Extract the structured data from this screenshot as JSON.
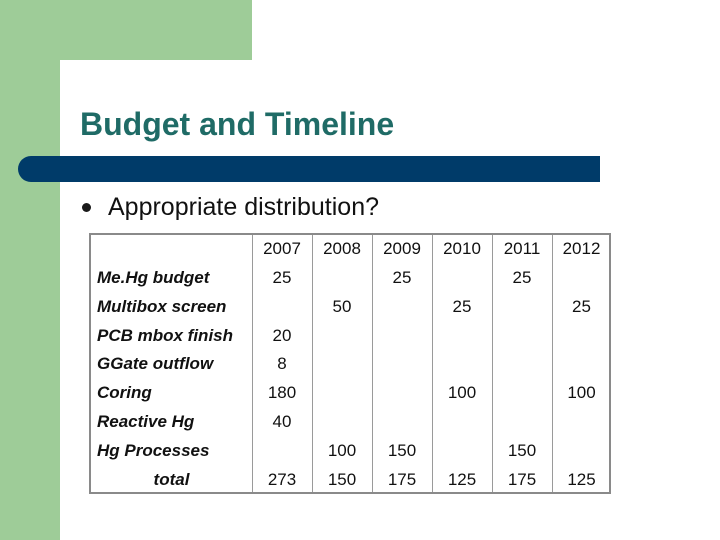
{
  "slide": {
    "title": "Budget and Timeline",
    "bullet": "Appropriate distribution?",
    "colors": {
      "accent_green": "#9ecc98",
      "title_color": "#1f6b66",
      "bar_color": "#003b69"
    }
  },
  "table": {
    "years": [
      "2007",
      "2008",
      "2009",
      "2010",
      "2011",
      "2012"
    ],
    "rows": [
      {
        "label": "Me.Hg budget",
        "cells": [
          {
            "col": 0,
            "span": 1,
            "value": "25"
          },
          {
            "col": 1,
            "span": 3,
            "value": "25"
          },
          {
            "col": 4,
            "span": 1,
            "value": "25"
          }
        ]
      },
      {
        "label": "Multibox screen",
        "cells": [
          {
            "col": 1,
            "span": 1,
            "value": "50"
          },
          {
            "col": 3,
            "span": 1,
            "value": "25"
          },
          {
            "col": 5,
            "span": 1,
            "value": "25"
          }
        ]
      },
      {
        "label": "PCB mbox finish",
        "cells": [
          {
            "col": 0,
            "span": 1,
            "value": "20"
          }
        ]
      },
      {
        "label": "GGate outflow",
        "cells": [
          {
            "col": 0,
            "span": 1,
            "value": "8"
          }
        ]
      },
      {
        "label": "Coring",
        "cells": [
          {
            "col": 0,
            "span": 1,
            "value": "180"
          },
          {
            "col": 3,
            "span": 1,
            "value": "100"
          },
          {
            "col": 5,
            "span": 1,
            "value": "100"
          }
        ]
      },
      {
        "label": "Reactive Hg",
        "cells": [
          {
            "col": 0,
            "span": 1,
            "value": "40"
          }
        ]
      },
      {
        "label": "Hg Processes",
        "cells": [
          {
            "col": 1,
            "span": 1,
            "value": "100"
          },
          {
            "col": 2,
            "span": 1,
            "value": "150"
          },
          {
            "col": 4,
            "span": 1,
            "value": "150"
          }
        ]
      },
      {
        "label": "total",
        "cells": [
          {
            "col": 0,
            "span": 1,
            "value": "273"
          },
          {
            "col": 1,
            "span": 1,
            "value": "150"
          },
          {
            "col": 2,
            "span": 1,
            "value": "175"
          },
          {
            "col": 3,
            "span": 1,
            "value": "125"
          },
          {
            "col": 4,
            "span": 1,
            "value": "175"
          },
          {
            "col": 5,
            "span": 1,
            "value": "125"
          }
        ]
      }
    ]
  }
}
